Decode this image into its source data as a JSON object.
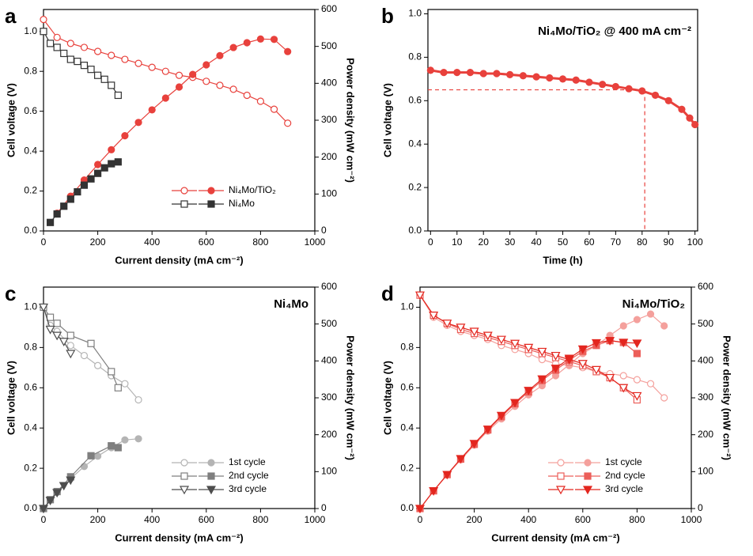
{
  "chart_data": [
    {
      "type": "line",
      "panel_label": "a",
      "x_label": "Current density (mA cm⁻²)",
      "y_label": "Cell voltage (V)",
      "y2_label": "Power density (mW cm⁻²)",
      "xlim": [
        0,
        1000
      ],
      "xticks": [
        0,
        200,
        400,
        600,
        800,
        1000
      ],
      "ylim": [
        0,
        1.11
      ],
      "yticks": [
        {
          "value": 0,
          "label": "0.0"
        },
        {
          "value": 0.2,
          "label": "0.2"
        },
        {
          "value": 0.4,
          "label": "0.4"
        },
        {
          "value": 0.6,
          "label": "0.6"
        },
        {
          "value": 0.8,
          "label": "0.8"
        },
        {
          "value": 1,
          "label": "1.0"
        }
      ],
      "y2lim": [
        0,
        600
      ],
      "y2ticks": [
        0,
        100,
        200,
        300,
        400,
        500,
        600
      ],
      "legend": true,
      "series": [
        {
          "name": "Ni₄Mo/TiO₂",
          "color": "#e8413c",
          "marker": "circle",
          "x": [
            0,
            50,
            100,
            150,
            200,
            250,
            300,
            350,
            400,
            450,
            500,
            550,
            600,
            650,
            700,
            750,
            800,
            850,
            900
          ],
          "values": [
            1.06,
            0.97,
            0.94,
            0.92,
            0.9,
            0.88,
            0.86,
            0.84,
            0.82,
            0.8,
            0.78,
            0.77,
            0.75,
            0.73,
            0.71,
            0.68,
            0.65,
            0.61,
            0.54
          ],
          "y2_values": [
            null,
            48,
            94,
            138,
            180,
            220,
            258,
            294,
            328,
            360,
            390,
            424,
            450,
            475,
            497,
            510,
            520,
            519,
            486
          ]
        },
        {
          "name": "Ni₄Mo",
          "color": "#333333",
          "marker": "square",
          "x": [
            0,
            25,
            50,
            75,
            100,
            125,
            150,
            175,
            200,
            225,
            250,
            275
          ],
          "values": [
            1.0,
            0.94,
            0.92,
            0.89,
            0.86,
            0.85,
            0.83,
            0.81,
            0.78,
            0.76,
            0.73,
            0.68
          ],
          "y2_values": [
            null,
            23,
            46,
            67,
            86,
            106,
            124,
            141,
            156,
            171,
            182,
            187
          ]
        }
      ]
    },
    {
      "type": "line",
      "panel_label": "b",
      "title": "Ni₄Mo/TiO₂ @ 400 mA cm⁻²",
      "title_color": "#e8413c",
      "x_label": "Time (h)",
      "y_label": "Cell voltage (V)",
      "xlim": [
        -1,
        101
      ],
      "xticks": [
        0,
        10,
        20,
        30,
        40,
        50,
        60,
        70,
        80,
        90,
        100
      ],
      "ylim": [
        0,
        1.02
      ],
      "yticks": [
        {
          "value": 0,
          "label": "0.0"
        },
        {
          "value": 0.2,
          "label": "0.2"
        },
        {
          "value": 0.4,
          "label": "0.4"
        },
        {
          "value": 0.6,
          "label": "0.6"
        },
        {
          "value": 0.8,
          "label": "0.8"
        },
        {
          "value": 1,
          "label": "1.0"
        }
      ],
      "ref_x": 81,
      "ref_y": 0.65,
      "series": [
        {
          "color": "#e8413c",
          "marker": "circle",
          "marker_fill": "filled",
          "x": [
            0,
            5,
            10,
            15,
            20,
            25,
            30,
            35,
            40,
            45,
            50,
            55,
            60,
            65,
            70,
            75,
            80,
            85,
            90,
            95,
            98,
            100
          ],
          "values": [
            0.74,
            0.73,
            0.73,
            0.73,
            0.725,
            0.725,
            0.72,
            0.715,
            0.71,
            0.705,
            0.7,
            0.695,
            0.685,
            0.675,
            0.665,
            0.655,
            0.645,
            0.625,
            0.6,
            0.56,
            0.52,
            0.49
          ]
        }
      ]
    },
    {
      "type": "line",
      "panel_label": "c",
      "title": "Ni₄Mo",
      "title_color": "#000000",
      "x_label": "Current density (mA cm⁻²)",
      "y_label": "Cell voltage (V)",
      "y2_label": "Power density (mW cm⁻²)",
      "xlim": [
        0,
        1000
      ],
      "xticks": [
        0,
        200,
        400,
        600,
        800,
        1000
      ],
      "ylim": [
        0,
        1.1
      ],
      "yticks": [
        {
          "value": 0,
          "label": "0.0"
        },
        {
          "value": 0.2,
          "label": "0.2"
        },
        {
          "value": 0.4,
          "label": "0.4"
        },
        {
          "value": 0.6,
          "label": "0.6"
        },
        {
          "value": 0.8,
          "label": "0.8"
        },
        {
          "value": 1,
          "label": "1.0"
        }
      ],
      "y2lim": [
        0,
        600
      ],
      "y2ticks": [
        0,
        100,
        200,
        300,
        400,
        500,
        600
      ],
      "legend": true,
      "series": [
        {
          "name": "1st cycle",
          "color": "#b4b4b4",
          "marker": "circle",
          "x": [
            0,
            25,
            50,
            100,
            150,
            200,
            250,
            300,
            350
          ],
          "values": [
            1.0,
            0.91,
            0.88,
            0.81,
            0.76,
            0.71,
            0.66,
            0.62,
            0.54
          ],
          "y2_values": [
            0,
            23,
            44,
            81,
            114,
            142,
            165,
            186,
            189
          ]
        },
        {
          "name": "2nd cycle",
          "color": "#7f7f7f",
          "marker": "square",
          "x": [
            0,
            25,
            50,
            100,
            175,
            250,
            275
          ],
          "values": [
            1.0,
            0.95,
            0.92,
            0.86,
            0.82,
            0.68,
            0.6
          ],
          "y2_values": [
            0,
            24,
            46,
            86,
            143,
            170,
            165
          ]
        },
        {
          "name": "3rd cycle",
          "color": "#4d4d4d",
          "marker": "triangle",
          "x": [
            0,
            25,
            50,
            75,
            100
          ],
          "values": [
            1.0,
            0.89,
            0.86,
            0.83,
            0.77
          ],
          "y2_values": [
            0,
            22,
            43,
            62,
            77
          ]
        }
      ]
    },
    {
      "type": "line",
      "panel_label": "d",
      "title": "Ni₄Mo/TiO₂",
      "title_color": "#e8413c",
      "x_label": "Current density (mA cm⁻²)",
      "y_label": "Cell voltage (V)",
      "y2_label": "Power density (mW cm⁻²)",
      "xlim": [
        0,
        1000
      ],
      "xticks": [
        0,
        200,
        400,
        600,
        800,
        1000
      ],
      "ylim": [
        0,
        1.1
      ],
      "yticks": [
        {
          "value": 0,
          "label": "0.0"
        },
        {
          "value": 0.2,
          "label": "0.2"
        },
        {
          "value": 0.4,
          "label": "0.4"
        },
        {
          "value": 0.6,
          "label": "0.6"
        },
        {
          "value": 0.8,
          "label": "0.8"
        },
        {
          "value": 1,
          "label": "1.0"
        }
      ],
      "y2lim": [
        0,
        600
      ],
      "y2ticks": [
        0,
        100,
        200,
        300,
        400,
        500,
        600
      ],
      "legend": true,
      "series": [
        {
          "name": "1st cycle",
          "color": "#f4a09c",
          "marker": "circle",
          "x": [
            0,
            50,
            100,
            150,
            200,
            250,
            300,
            350,
            400,
            450,
            500,
            550,
            600,
            650,
            700,
            750,
            800,
            850,
            900
          ],
          "values": [
            1.06,
            0.95,
            0.91,
            0.88,
            0.86,
            0.84,
            0.81,
            0.79,
            0.77,
            0.74,
            0.72,
            0.71,
            0.7,
            0.68,
            0.67,
            0.66,
            0.64,
            0.62,
            0.55
          ],
          "y2_values": [
            0,
            48,
            91,
            132,
            172,
            210,
            243,
            277,
            308,
            333,
            360,
            390,
            420,
            442,
            469,
            495,
            512,
            527,
            495
          ]
        },
        {
          "name": "2nd cycle",
          "color": "#ec5f5a",
          "marker": "square",
          "x": [
            0,
            50,
            100,
            150,
            200,
            250,
            300,
            350,
            400,
            450,
            500,
            550,
            600,
            650,
            700,
            750,
            800
          ],
          "values": [
            1.06,
            0.96,
            0.92,
            0.89,
            0.87,
            0.85,
            0.83,
            0.81,
            0.79,
            0.77,
            0.75,
            0.73,
            0.71,
            0.68,
            0.65,
            0.6,
            0.54
          ],
          "y2_values": [
            0,
            48,
            92,
            134,
            174,
            213,
            249,
            284,
            316,
            347,
            375,
            402,
            426,
            442,
            455,
            450,
            420
          ]
        },
        {
          "name": "3rd cycle",
          "color": "#e3261f",
          "marker": "triangle",
          "x": [
            0,
            50,
            100,
            150,
            200,
            250,
            300,
            350,
            400,
            450,
            500,
            550,
            600,
            650,
            700,
            750,
            800
          ],
          "values": [
            1.06,
            0.96,
            0.92,
            0.9,
            0.88,
            0.86,
            0.84,
            0.82,
            0.8,
            0.78,
            0.76,
            0.74,
            0.72,
            0.69,
            0.65,
            0.6,
            0.56
          ],
          "y2_values": [
            0,
            48,
            92,
            135,
            176,
            215,
            252,
            287,
            320,
            351,
            380,
            407,
            432,
            449,
            455,
            450,
            448
          ]
        }
      ]
    }
  ]
}
